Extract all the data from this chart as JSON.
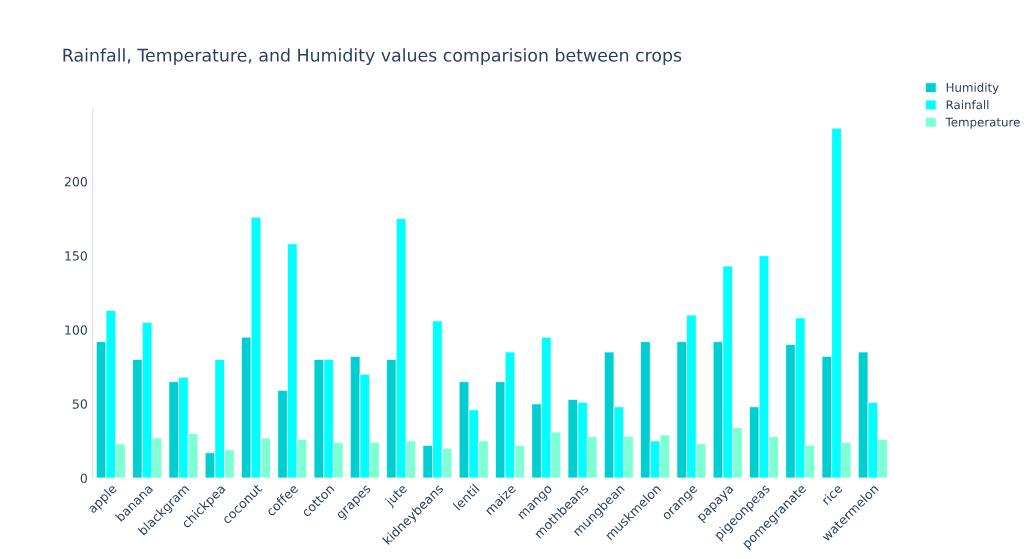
{
  "chart_data": {
    "type": "bar",
    "title": "Rainfall, Temperature, and Humidity values comparision between crops",
    "categories": [
      "apple",
      "banana",
      "blackgram",
      "chickpea",
      "coconut",
      "coffee",
      "cotton",
      "grapes",
      "jute",
      "kidneybeans",
      "lentil",
      "maize",
      "mango",
      "mothbeans",
      "mungbean",
      "muskmelon",
      "orange",
      "papaya",
      "pigeonpeas",
      "pomegranate",
      "rice",
      "watermelon"
    ],
    "series": [
      {
        "name": "Humidity",
        "color": "#00ced1",
        "values": [
          92,
          80,
          65,
          17,
          95,
          59,
          80,
          82,
          80,
          22,
          65,
          65,
          50,
          53,
          85,
          92,
          92,
          92,
          48,
          90,
          82,
          85
        ]
      },
      {
        "name": "Rainfall",
        "color": "#00ffff",
        "values": [
          113,
          105,
          68,
          80,
          176,
          158,
          80,
          70,
          175,
          106,
          46,
          85,
          95,
          51,
          48,
          25,
          110,
          143,
          150,
          108,
          236,
          51
        ]
      },
      {
        "name": "Temperature",
        "color": "#7fffd4",
        "values": [
          23,
          27,
          30,
          19,
          27,
          26,
          24,
          24,
          25,
          20,
          25,
          22,
          31,
          28,
          28,
          29,
          23,
          34,
          28,
          22,
          24,
          26
        ]
      }
    ],
    "ylim": [
      0,
      249
    ],
    "yticks": [
      0,
      50,
      100,
      150,
      200
    ],
    "grid": false,
    "legend": "top right"
  }
}
